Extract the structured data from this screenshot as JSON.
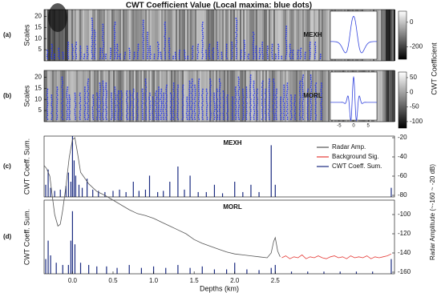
{
  "title": "CWT Coefficient Value (Local maxima: blue dots)",
  "chart_data": [
    {
      "type": "heatmap",
      "panel_label": "(a)",
      "wavelet": "MEXH",
      "ylabel": "Scales",
      "ylim": [
        0,
        23
      ],
      "yticks": [
        5,
        10,
        15,
        20
      ],
      "colorbar_label": "CWT Coefficient",
      "colorbar_lim": [
        -300,
        90
      ],
      "colorbar_ticks": [
        0,
        -200
      ]
    },
    {
      "type": "heatmap",
      "panel_label": "(b)",
      "wavelet": "MORL",
      "ylabel": "Scales",
      "ylim": [
        0,
        23
      ],
      "yticks": [
        5,
        10,
        15,
        20
      ],
      "colorbar_lim": [
        -122,
        69
      ],
      "colorbar_ticks": [
        50,
        0,
        -50,
        -100
      ],
      "inset_xlim": [
        -8,
        8
      ],
      "inset_xticks": [
        -5,
        0,
        5
      ]
    },
    {
      "type": "spike",
      "panel_label": "(c)",
      "wavelet": "MEXH",
      "ylabel": "CWT Coeff. Sum.",
      "ylim": [
        0,
        100
      ],
      "series": [
        {
          "name": "CWT Coeff. Sum.",
          "color": "#1a2a80",
          "x": [
            -0.33,
            -0.3,
            -0.27,
            -0.22,
            -0.15,
            -0.08,
            -0.05,
            -0.02,
            0.0,
            0.02,
            0.04,
            0.08,
            0.12,
            0.18,
            0.25,
            0.32,
            0.4,
            0.5,
            0.58,
            0.66,
            0.75,
            0.82,
            0.9,
            0.95,
            1.05,
            1.12,
            1.2,
            1.3,
            1.38,
            1.45,
            1.55,
            1.65,
            1.75,
            1.85,
            2.0,
            2.1,
            2.2,
            2.3,
            2.45,
            2.5,
            3.93
          ],
          "values": [
            20,
            45,
            15,
            10,
            12,
            18,
            40,
            25,
            100,
            60,
            35,
            20,
            15,
            30,
            12,
            10,
            8,
            10,
            12,
            8,
            25,
            10,
            12,
            35,
            8,
            10,
            25,
            50,
            12,
            35,
            8,
            8,
            20,
            6,
            25,
            8,
            20,
            8,
            85,
            20,
            15
          ]
        }
      ]
    },
    {
      "type": "spike",
      "panel_label": "(d)",
      "wavelet": "MORL",
      "ylabel": "CWT Coeff. Sum.",
      "ylim": [
        0,
        100
      ],
      "series": [
        {
          "color": "#1a2a80",
          "x": [
            -0.33,
            -0.3,
            -0.27,
            -0.2,
            -0.12,
            -0.05,
            -0.02,
            0.0,
            0.03,
            0.1,
            0.2,
            0.3,
            0.42,
            0.55,
            0.7,
            0.85,
            1.0,
            1.15,
            1.3,
            1.45,
            1.6,
            1.75,
            1.9,
            2.0,
            2.15,
            2.3,
            2.45,
            2.5,
            2.7,
            2.9,
            3.1,
            3.3,
            3.5,
            3.7,
            3.93
          ],
          "values": [
            20,
            45,
            25,
            15,
            12,
            12,
            45,
            85,
            40,
            15,
            12,
            10,
            10,
            8,
            12,
            8,
            10,
            8,
            12,
            8,
            10,
            6,
            6,
            15,
            6,
            5,
            8,
            12,
            3,
            3,
            3,
            3,
            3,
            3,
            20
          ]
        }
      ]
    },
    {
      "type": "line",
      "xlabel": "Depths (km)",
      "xlim": [
        -0.35,
        3.97
      ],
      "xticks": [
        {
          "value": 0,
          "label": "0.0"
        },
        0.5,
        {
          "value": 1,
          "label": "1.0"
        },
        1.5,
        {
          "value": 2,
          "label": "2.0"
        },
        2.5
      ],
      "y2label": "Radar Amplitude (~-160 ~ -20 dB)",
      "y2lim": [
        -160,
        -20
      ],
      "y2ticks": [
        -20,
        -40,
        -60,
        -80,
        -100,
        -120,
        -140,
        -160
      ],
      "legend": "upper right",
      "series": [
        {
          "name": "Radar Amp.",
          "color": "#555555",
          "axis": "y2",
          "x": [
            -0.35,
            -0.32,
            -0.28,
            -0.25,
            -0.22,
            -0.18,
            -0.15,
            -0.12,
            -0.08,
            -0.04,
            0.0,
            0.03,
            0.06,
            0.1,
            0.15,
            0.2,
            0.3,
            0.4,
            0.5,
            0.6,
            0.7,
            0.8,
            0.9,
            1.0,
            1.1,
            1.2,
            1.3,
            1.4,
            1.5,
            1.6,
            1.7,
            1.8,
            1.9,
            2.0,
            2.1,
            2.2,
            2.3,
            2.4,
            2.45,
            2.48,
            2.5,
            2.53,
            2.56
          ],
          "values": [
            -49,
            -52,
            -60,
            -80,
            -100,
            -112,
            -110,
            -95,
            -70,
            -40,
            -22,
            -20,
            -35,
            -56,
            -62,
            -68,
            -76,
            -80,
            -85,
            -90,
            -95,
            -99,
            -101,
            -104,
            -108,
            -112,
            -116,
            -120,
            -126,
            -130,
            -133,
            -136,
            -139,
            -141,
            -142,
            -143,
            -144,
            -145,
            -140,
            -128,
            -124,
            -138,
            -144
          ]
        },
        {
          "name": "Background Sig.",
          "color": "#e53935",
          "axis": "y2",
          "x": [
            2.58,
            2.63,
            2.68,
            2.73,
            2.78,
            2.83,
            2.88,
            2.93,
            2.98,
            3.03,
            3.08,
            3.13,
            3.18,
            3.23,
            3.28,
            3.33,
            3.38,
            3.43,
            3.48,
            3.53,
            3.58,
            3.63,
            3.68,
            3.73,
            3.78,
            3.83,
            3.88,
            3.93
          ],
          "values": [
            -145,
            -143,
            -146,
            -144,
            -145,
            -142,
            -146,
            -144,
            -145,
            -143,
            -145,
            -146,
            -144,
            -143,
            -145,
            -144,
            -146,
            -143,
            -145,
            -144,
            -145,
            -143,
            -146,
            -144,
            -145,
            -144,
            -143,
            -141
          ]
        }
      ]
    }
  ]
}
